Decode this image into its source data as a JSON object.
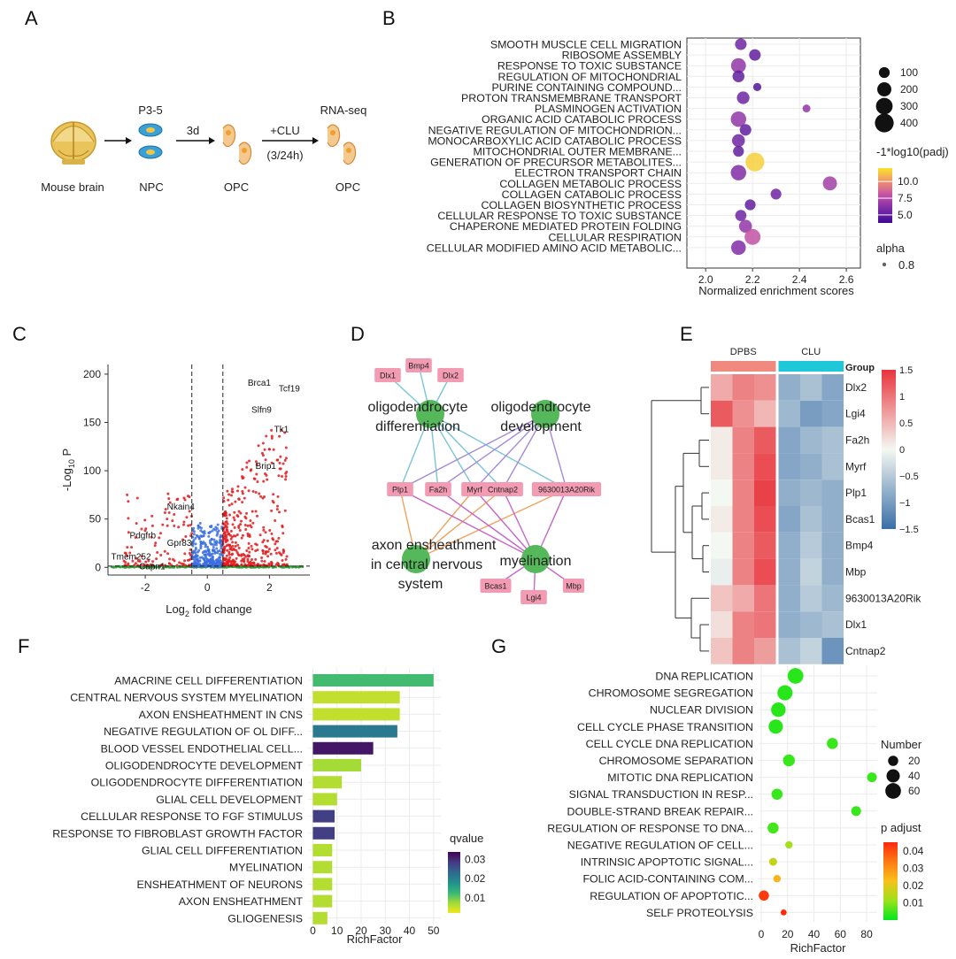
{
  "panel_labels": [
    "A",
    "B",
    "C",
    "D",
    "E",
    "F",
    "G"
  ],
  "panel_a": {
    "steps": [
      "Mouse brain",
      "NPC",
      "OPC",
      "OPC"
    ],
    "top_labels": [
      "P3-5",
      "3d",
      "+CLU",
      "RNA-seq"
    ],
    "sub_label": "(3/24h)",
    "icons": [
      "brain-icon",
      "npc-cell-icon",
      "opc-cell-icon",
      "opc-cell-icon"
    ]
  },
  "chart_data": [
    {
      "panel": "B",
      "type": "scatter",
      "xlabel": "Normalized enrichment scores",
      "xlim": [
        1.92,
        2.66
      ],
      "xticks": [
        2.0,
        2.2,
        2.4,
        2.6
      ],
      "xtick_labels": [
        "2.0",
        "2.2",
        "2.4",
        "2.6"
      ],
      "terms": [
        "SMOOTH MUSCLE CELL MIGRATION",
        "RIBOSOME ASSEMBLY",
        "RESPONSE TO TOXIC SUBSTANCE",
        "REGULATION OF MITOCHONDRIAL",
        "PURINE CONTAINING COMPOUND...",
        "PROTON TRANSMEMBRANE TRANSPORT",
        "PLASMINOGEN ACTIVATION",
        "ORGANIC ACID CATABOLIC PROCESS",
        "NEGATIVE REGULATION OF MITOCHONDRION...",
        "MONOCARBOXYLIC ACID CATABOLIC PROCESS",
        "MITOCHONDRIAL OUTER MEMBRANE...",
        "GENERATION OF PRECURSOR METABOLITES...",
        "ELECTRON TRANSPORT CHAIN",
        "COLLAGEN METABOLIC PROCESS",
        "COLLAGEN CATABOLIC PROCESS",
        "COLLAGEN BIOSYNTHETIC PROCESS",
        "CELLULAR RESPONSE TO TOXIC SUBSTANCE",
        "CHAPERONE MEDIATED PROTEIN FOLDING",
        "CELLULAR RESPIRATION",
        "CELLULAR MODIFIED AMINO ACID METABOLIC..."
      ],
      "x": [
        2.15,
        2.21,
        2.14,
        2.14,
        2.22,
        2.16,
        2.43,
        2.14,
        2.17,
        2.14,
        2.14,
        2.21,
        2.14,
        2.53,
        2.3,
        2.19,
        2.15,
        2.17,
        2.2,
        2.14
      ],
      "size": [
        120,
        120,
        230,
        130,
        45,
        150,
        40,
        250,
        120,
        160,
        100,
        400,
        250,
        200,
        100,
        100,
        110,
        160,
        270,
        220
      ],
      "color_value": [
        5.5,
        5.0,
        6.5,
        5.0,
        4.5,
        5.5,
        6.5,
        6.5,
        5.0,
        5.5,
        5.0,
        11.5,
        6.0,
        7.0,
        5.5,
        5.0,
        5.5,
        6.5,
        8.0,
        6.0
      ],
      "size_legend": {
        "title": "",
        "values": [
          100,
          200,
          300,
          400
        ],
        "labels": [
          "100",
          "200",
          "300",
          "400"
        ]
      },
      "color_legend": {
        "title": "-1*log10(padj)",
        "range": [
          3.8,
          12.0
        ],
        "ticks": [
          5.0,
          7.5,
          10.0
        ],
        "tick_labels": [
          "5.0",
          "7.5",
          "10.0"
        ],
        "colors": [
          "#3d0a91",
          "#7b2aa6",
          "#c04fa8",
          "#ef8f70",
          "#f9e52a"
        ]
      },
      "alpha_legend": {
        "title": "alpha",
        "label": "0.8"
      }
    },
    {
      "panel": "C",
      "type": "scatter",
      "xlabel": "Log",
      "xlabel_sub": "2",
      "xlabel_rest": " fold change",
      "ylabel": "-Log",
      "ylabel_sub": "10",
      "ylabel_rest": " P",
      "xlim": [
        -3.2,
        3.3
      ],
      "ylim": [
        -8,
        210
      ],
      "xticks": [
        -2,
        0,
        2
      ],
      "xtick_labels": [
        "-2",
        "0",
        "2"
      ],
      "yticks": [
        0,
        50,
        100,
        150,
        200
      ],
      "ytick_labels": [
        "0",
        "50",
        "100",
        "150",
        "200"
      ],
      "fc_threshold": 0.5,
      "p_threshold": 1.3,
      "colors": {
        "up": "#e31a1c",
        "mid": "#3a6fe0",
        "ns": "#2e9e3a"
      },
      "labels": [
        {
          "text": "Brca1",
          "x": 1.3,
          "y": 188
        },
        {
          "text": "Tcf19",
          "x": 2.3,
          "y": 182
        },
        {
          "text": "Slfn9",
          "x": 1.42,
          "y": 160
        },
        {
          "text": "Tk1",
          "x": 2.15,
          "y": 140
        },
        {
          "text": "Brip1",
          "x": 1.55,
          "y": 102
        },
        {
          "text": "Nkain4",
          "x": -1.3,
          "y": 60
        },
        {
          "text": "Pdgfrb",
          "x": -2.5,
          "y": 30
        },
        {
          "text": "Gpr83",
          "x": -1.3,
          "y": 22
        },
        {
          "text": "Tmem252",
          "x": -3.1,
          "y": 8
        },
        {
          "text": "Capn1",
          "x": -2.2,
          "y": -2
        }
      ]
    },
    {
      "panel": "E",
      "type": "heatmap",
      "groups": [
        "DPBS",
        "CLU"
      ],
      "group_colors": [
        "#f08a7e",
        "#1ec8d8"
      ],
      "legend_title": "Group",
      "rows": [
        "Dlx2",
        "Lgi4",
        "Fa2h",
        "Myrf",
        "Plp1",
        "Bcas1",
        "Bmp4",
        "Mbp",
        "9630013A20Rik",
        "Dlx1",
        "Cntnap2"
      ],
      "values": [
        [
          0.6,
          0.9,
          0.8,
          -0.8,
          -0.6,
          -0.9
        ],
        [
          1.2,
          0.8,
          0.5,
          -0.7,
          -1.0,
          -0.9
        ],
        [
          0.1,
          0.9,
          1.2,
          -0.9,
          -0.7,
          -0.6
        ],
        [
          0.1,
          0.9,
          1.3,
          -0.9,
          -0.8,
          -0.6
        ],
        [
          0.0,
          0.9,
          1.4,
          -0.8,
          -0.7,
          -0.8
        ],
        [
          0.1,
          0.9,
          1.3,
          -0.9,
          -0.6,
          -0.8
        ],
        [
          0.0,
          0.9,
          1.2,
          -0.8,
          -0.5,
          -0.8
        ],
        [
          -0.1,
          0.9,
          1.3,
          -0.8,
          -0.4,
          -0.8
        ],
        [
          0.4,
          0.6,
          1.0,
          -0.8,
          -0.5,
          -0.7
        ],
        [
          0.2,
          0.9,
          1.0,
          -0.8,
          -0.7,
          -0.6
        ],
        [
          0.4,
          0.9,
          0.7,
          -0.6,
          -0.4,
          -1.1
        ]
      ],
      "scale": {
        "min": -1.5,
        "max": 1.5,
        "ticks": [
          1.5,
          1,
          0.5,
          0,
          -0.5,
          -1,
          -1.5
        ],
        "tick_labels": [
          "1.5",
          "1",
          "0.5",
          "0",
          "−0.5",
          "−1",
          "−1.5"
        ],
        "low": "#3b6fa8",
        "mid": "#f4f8f2",
        "high": "#e8343c"
      }
    },
    {
      "panel": "F",
      "type": "bar",
      "orientation": "horizontal",
      "xlabel": "RichFactor",
      "xlim": [
        -2,
        53
      ],
      "xticks": [
        0,
        10,
        20,
        30,
        40,
        50
      ],
      "xtick_labels": [
        "0",
        "10",
        "20",
        "30",
        "40",
        "50"
      ],
      "categories": [
        "AMACRINE CELL DIFFERENTIATION",
        "CENTRAL NERVOUS SYSTEM MYELINATION",
        "AXON ENSHEATHMENT IN CNS",
        "NEGATIVE REGULATION OF OL DIFF...",
        "BLOOD VESSEL ENDOTHELIAL CELL...",
        "OLIGODENDROCYTE DEVELOPMENT",
        "OLIGODENDROCYTE DIFFERENTIATION",
        "GLIAL CELL DEVELOPMENT",
        "CELLULAR RESPONSE TO FGF STIMULUS",
        "RESPONSE TO FIBROBLAST GROWTH FACTOR",
        "GLIAL CELL DIFFERENTIATION",
        "MYELINATION",
        "ENSHEATHMENT OF NEURONS",
        "AXON ENSHEATHMENT",
        "GLIOGENESIS"
      ],
      "values": [
        50,
        36,
        36,
        35,
        25,
        20,
        12,
        10,
        9,
        9,
        8,
        8,
        8,
        8,
        6
      ],
      "color_value": [
        0.012,
        0.005,
        0.005,
        0.021,
        0.032,
        0.007,
        0.006,
        0.006,
        0.028,
        0.028,
        0.006,
        0.006,
        0.006,
        0.006,
        0.006
      ],
      "legend": {
        "title": "qvalue",
        "range": [
          0.002,
          0.034
        ],
        "ticks": [
          0.03,
          0.02,
          0.01
        ],
        "tick_labels": [
          "0.03",
          "0.02",
          "0.01"
        ],
        "colors": [
          "#f1e51d",
          "#a0da39",
          "#35b779",
          "#21908d",
          "#31688e",
          "#443983",
          "#440154"
        ]
      }
    },
    {
      "panel": "G",
      "type": "scatter",
      "xlabel": "RichFactor",
      "xlim": [
        -2,
        88
      ],
      "xticks": [
        0,
        20,
        40,
        60,
        80
      ],
      "xtick_labels": [
        "0",
        "20",
        "40",
        "60",
        "80"
      ],
      "terms": [
        "DNA REPLICATION",
        "CHROMOSOME SEGREGATION",
        "NUCLEAR DIVISION",
        "CELL CYCLE PHASE TRANSITION",
        "CELL CYCLE DNA REPLICATION",
        "CHROMOSOME SEPARATION",
        "MITOTIC DNA REPLICATION",
        "SIGNAL TRANSDUCTION IN RESP...",
        "DOUBLE-STRAND BREAK REPAIR...",
        "REGULATION OF RESPONSE TO DNA...",
        "NEGATIVE REGULATION OF CELL...",
        "INTRINSIC APOPTOTIC SIGNAL...",
        "FOLIC ACID-CONTAINING COM...",
        "REGULATION OF APOPTOTIC...",
        "SELF PROTEOLYSIS"
      ],
      "x": [
        26,
        18,
        13,
        11,
        54,
        21,
        84,
        12,
        72,
        9,
        21,
        9,
        12,
        2,
        17
      ],
      "size": [
        60,
        55,
        50,
        48,
        25,
        30,
        18,
        25,
        18,
        25,
        8,
        10,
        8,
        20,
        4
      ],
      "color_value": [
        0.003,
        0.003,
        0.003,
        0.003,
        0.004,
        0.004,
        0.004,
        0.004,
        0.004,
        0.005,
        0.012,
        0.016,
        0.025,
        0.043,
        0.045
      ],
      "size_legend": {
        "title": "Number",
        "values": [
          20,
          40,
          60
        ],
        "labels": [
          "20",
          "40",
          "60"
        ]
      },
      "color_legend": {
        "title": "p adjust",
        "range": [
          0.0,
          0.045
        ],
        "ticks": [
          0.04,
          0.03,
          0.02,
          0.01
        ],
        "tick_labels": [
          "0.04",
          "0.03",
          "0.02",
          "0.01"
        ],
        "colors": [
          "#00e81c",
          "#9be21a",
          "#f7c21a",
          "#ff7a12",
          "#ff2a0c"
        ]
      }
    }
  ],
  "panel_d": {
    "hubs": [
      {
        "id": "od",
        "label1": "oligodendrocyte",
        "label2": "differentiation",
        "color": "#55b85a"
      },
      {
        "id": "odev",
        "label1": "oligodendrocyte",
        "label2": "development",
        "color": "#55b85a"
      },
      {
        "id": "axon",
        "label1": "axon ensheathment",
        "label2": "in central nervous",
        "label3": "system",
        "color": "#55b85a"
      },
      {
        "id": "my",
        "label1": "myelination",
        "color": "#55b85a"
      }
    ],
    "genes": [
      "Dlx1",
      "Bmp4",
      "Dlx2",
      "Plp1",
      "Fa2h",
      "Myrf",
      "Cntnap2",
      "9630013A20Rik",
      "Bcas1",
      "Lgi4",
      "Mbp"
    ],
    "gene_color": "#f29bb3",
    "edge_colors": {
      "od": "#7cc4dc",
      "odev": "#a58bd6",
      "axon": "#f0a25e",
      "my": "#c766c9"
    }
  }
}
